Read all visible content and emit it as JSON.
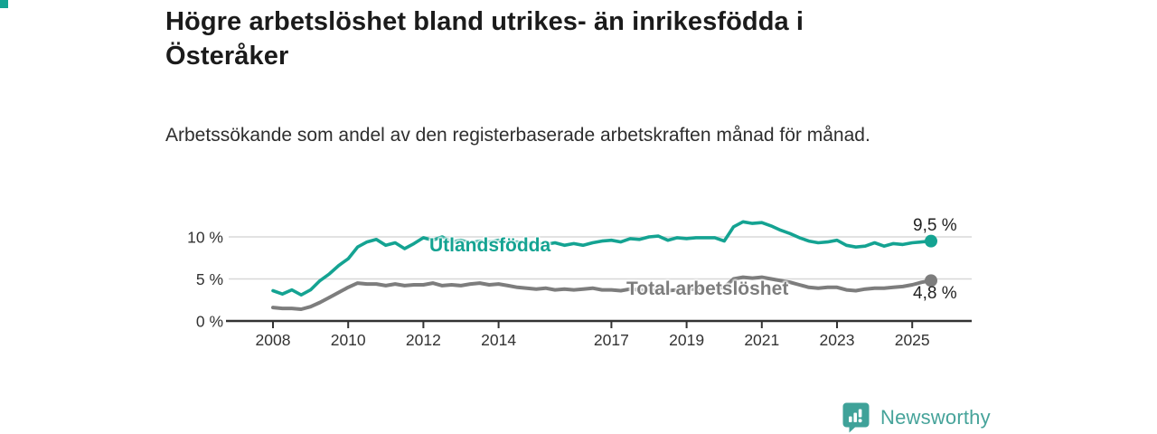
{
  "header": {
    "title": "Högre arbetslöshet bland utrikes- än inrikesfödda i Österåker",
    "subtitle": "Arbetssökande som andel av den registerbaserade arbetskraften månad för månad."
  },
  "chart_data": {
    "type": "line",
    "title": "Högre arbetslöshet bland utrikes- än inrikesfödda i Österåker",
    "subtitle": "Arbetssökande som andel av den registerbaserade arbetskraften månad för månad.",
    "unit": "%",
    "grid": "horizontal",
    "legend": "inline-labels",
    "xlim": [
      2007.85,
      2026.6
    ],
    "ylim": [
      0,
      12.5
    ],
    "x_ticks": [
      2008,
      2010,
      2012,
      2014,
      2017,
      2019,
      2021,
      2023,
      2025
    ],
    "x_tick_labels": [
      "2008",
      "2010",
      "2012",
      "2014",
      "2017",
      "2019",
      "2021",
      "2023",
      "2025"
    ],
    "y_ticks": [
      0,
      5,
      10
    ],
    "y_tick_labels": [
      "0 %",
      "5 %",
      "10 %"
    ],
    "x": [
      2008,
      2008.25,
      2008.5,
      2008.75,
      2009,
      2009.25,
      2009.5,
      2009.75,
      2010,
      2010.25,
      2010.5,
      2010.75,
      2011,
      2011.25,
      2011.5,
      2011.75,
      2012,
      2012.25,
      2012.5,
      2012.75,
      2013,
      2013.25,
      2013.5,
      2013.75,
      2014,
      2014.25,
      2014.5,
      2014.75,
      2015,
      2015.25,
      2015.5,
      2015.75,
      2016,
      2016.25,
      2016.5,
      2016.75,
      2017,
      2017.25,
      2017.5,
      2017.75,
      2018,
      2018.25,
      2018.5,
      2018.75,
      2019,
      2019.25,
      2019.5,
      2019.75,
      2020,
      2020.25,
      2020.5,
      2020.75,
      2021,
      2021.25,
      2021.5,
      2021.75,
      2022,
      2022.25,
      2022.5,
      2022.75,
      2023,
      2023.25,
      2023.5,
      2023.75,
      2024,
      2024.25,
      2024.5,
      2024.75,
      2025,
      2025.25,
      2025.5
    ],
    "series": [
      {
        "name": "Utlandsfödda",
        "color": "#14a392",
        "end_label": "9,5 %",
        "end_value": 9.5,
        "values": [
          3.6,
          3.2,
          3.7,
          3.1,
          3.7,
          4.8,
          5.6,
          6.6,
          7.4,
          8.8,
          9.4,
          9.7,
          9.0,
          9.3,
          8.6,
          9.2,
          9.9,
          9.6,
          10.0,
          9.4,
          9.6,
          9.3,
          9.5,
          9.4,
          9.6,
          9.3,
          9.4,
          9.2,
          9.3,
          9.1,
          9.3,
          9.0,
          9.2,
          9.0,
          9.3,
          9.5,
          9.6,
          9.4,
          9.8,
          9.7,
          10.0,
          10.1,
          9.6,
          9.9,
          9.8,
          9.9,
          9.9,
          9.9,
          9.5,
          11.2,
          11.8,
          11.6,
          11.7,
          11.3,
          10.8,
          10.4,
          9.9,
          9.5,
          9.3,
          9.4,
          9.6,
          9.0,
          8.8,
          8.9,
          9.3,
          8.9,
          9.2,
          9.1,
          9.3,
          9.4,
          9.5
        ]
      },
      {
        "name": "Total arbetslöshet",
        "color": "#7d7d7d",
        "end_label": "4,8 %",
        "end_value": 4.8,
        "values": [
          1.6,
          1.5,
          1.5,
          1.4,
          1.7,
          2.2,
          2.8,
          3.4,
          4.0,
          4.5,
          4.4,
          4.4,
          4.2,
          4.4,
          4.2,
          4.3,
          4.3,
          4.5,
          4.2,
          4.3,
          4.2,
          4.4,
          4.5,
          4.3,
          4.4,
          4.2,
          4.0,
          3.9,
          3.8,
          3.9,
          3.7,
          3.8,
          3.7,
          3.8,
          3.9,
          3.7,
          3.7,
          3.6,
          3.8,
          3.7,
          3.7,
          3.6,
          3.6,
          3.7,
          3.8,
          3.8,
          3.9,
          3.9,
          4.0,
          5.0,
          5.2,
          5.1,
          5.2,
          5.0,
          4.8,
          4.6,
          4.3,
          4.0,
          3.9,
          4.0,
          4.0,
          3.7,
          3.6,
          3.8,
          3.9,
          3.9,
          4.0,
          4.1,
          4.3,
          4.6,
          4.8
        ]
      }
    ],
    "colors": {
      "grid": "#d8d8d8",
      "axis": "#333333",
      "tick_label": "#333333"
    }
  },
  "footer": {
    "brand": "Newsworthy",
    "brand_color": "#46a39a",
    "logo_icon": "bar-chart-speech-bubble-icon"
  }
}
